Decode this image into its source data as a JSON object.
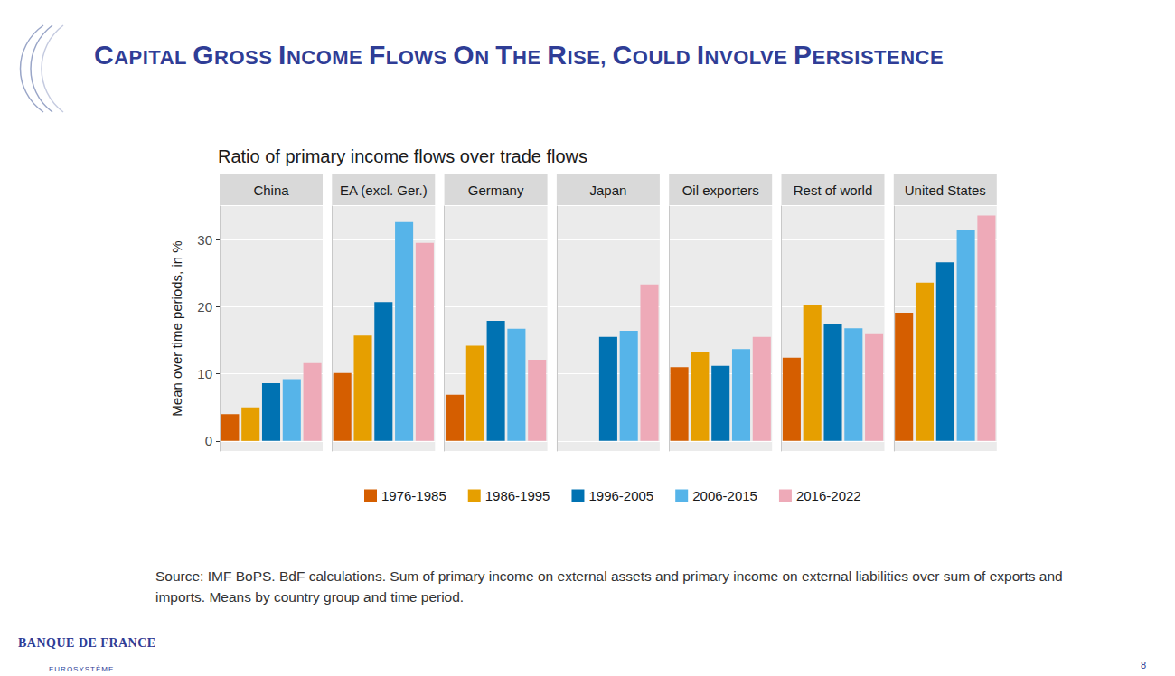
{
  "chart_data": {
    "type": "bar",
    "title": "Ratio of primary income flows over trade flows",
    "y_label": "Mean over time periods, in %",
    "categories": [
      "China",
      "EA (excl. Ger.)",
      "Germany",
      "Japan",
      "Oil exporters",
      "Rest of world",
      "United States"
    ],
    "series": [
      {
        "name": "1976-1985",
        "color": "#d55e00",
        "values": [
          4.0,
          10.1,
          6.9,
          null,
          11.0,
          12.4,
          19.1
        ]
      },
      {
        "name": "1986-1995",
        "color": "#e69f00",
        "values": [
          5.0,
          15.7,
          14.2,
          null,
          13.3,
          20.2,
          23.6
        ]
      },
      {
        "name": "1996-2005",
        "color": "#0072b2",
        "values": [
          8.6,
          20.7,
          17.9,
          15.5,
          11.2,
          17.4,
          26.6
        ]
      },
      {
        "name": "2006-2015",
        "color": "#56b4e9",
        "values": [
          9.2,
          32.6,
          16.7,
          16.4,
          13.7,
          16.8,
          31.5
        ]
      },
      {
        "name": "2016-2022",
        "color": "#eeaab8",
        "values": [
          11.6,
          29.5,
          12.1,
          23.3,
          15.5,
          15.9,
          33.6
        ]
      }
    ],
    "ylim": [
      -1.5,
      35
    ],
    "yticks": [
      0,
      10,
      20,
      30
    ],
    "grid": true,
    "legend": "bottom",
    "tick_labels": "y"
  },
  "slide": {
    "heading": "CAPITAL GROSS INCOME FLOWS ON THE RISE, COULD INVOLVE PERSISTENCE",
    "source": "Source: IMF BoPS. BdF calculations. Sum of primary income on external assets and primary income on external liabilities over sum of exports and imports. Means by country group and time period.",
    "logo": "BANQUE DE FRANCE",
    "logo_subtitle": "EUROSYSTÈME",
    "page": 8
  }
}
